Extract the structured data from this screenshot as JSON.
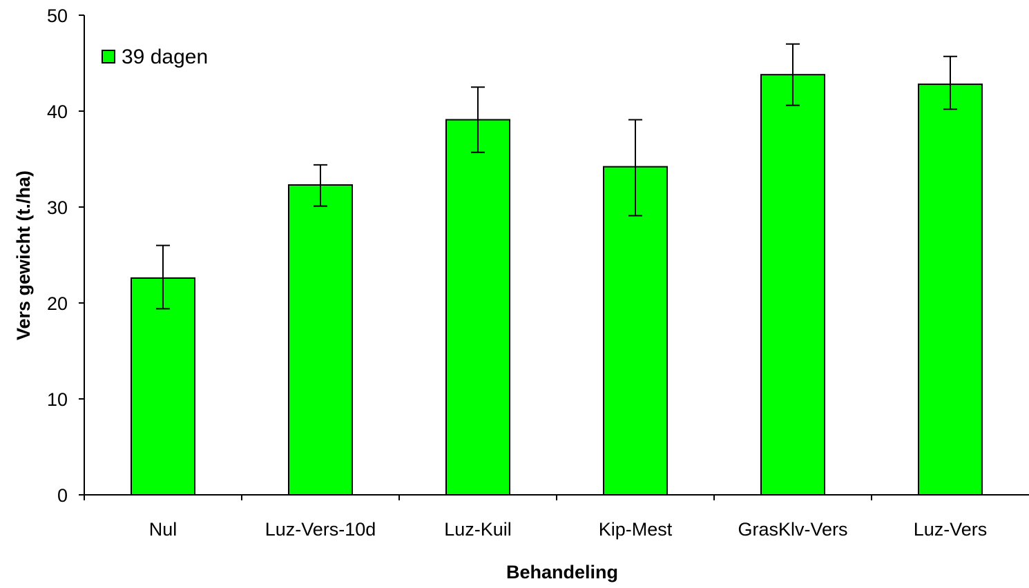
{
  "chart_data": {
    "type": "bar",
    "categories": [
      "Nul",
      "Luz-Vers-10d",
      "Luz-Kuil",
      "Kip-Mest",
      "GrasKlv-Vers",
      "Luz-Vers"
    ],
    "series": [
      {
        "name": "39 dagen",
        "values": [
          22.6,
          32.3,
          39.1,
          34.2,
          43.8,
          42.8
        ],
        "error_low": [
          19.4,
          30.1,
          35.7,
          29.1,
          40.6,
          40.2
        ],
        "error_high": [
          26.0,
          34.4,
          42.5,
          39.1,
          47.0,
          45.7
        ],
        "color": "#00ff00"
      }
    ],
    "xlabel": "Behandeling",
    "ylabel": "Vers gewicht (t./ha)",
    "ylim": [
      0,
      50
    ],
    "yticks": [
      0,
      10,
      20,
      30,
      40,
      50
    ],
    "grid": false,
    "legend_position": "top-left"
  }
}
